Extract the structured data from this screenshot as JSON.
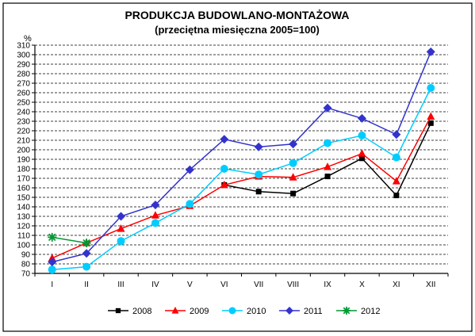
{
  "chart_data": {
    "type": "line",
    "title": "PRODUKCJA BUDOWLANO-MONTAŻOWA",
    "subtitle": "(przeciętna miesięczna 2005=100)",
    "ylabel": "%",
    "xlabel": "",
    "ylim": [
      70,
      310
    ],
    "ytick_step": 10,
    "grid": true,
    "legend_position": "bottom",
    "categories": [
      "I",
      "II",
      "III",
      "IV",
      "V",
      "VI",
      "VII",
      "VIII",
      "IX",
      "X",
      "XI",
      "XII"
    ],
    "series": [
      {
        "name": "2008",
        "color": "#000000",
        "marker": "square",
        "values": [
          null,
          null,
          null,
          null,
          null,
          163,
          156,
          154,
          172,
          191,
          152,
          228
        ]
      },
      {
        "name": "2009",
        "color": "#ff0000",
        "marker": "triangle",
        "values": [
          86,
          102,
          117,
          131,
          141,
          163,
          172,
          171,
          182,
          196,
          167,
          235
        ]
      },
      {
        "name": "2010",
        "color": "#00ccff",
        "marker": "circle",
        "values": [
          74,
          77,
          104,
          123,
          143,
          180,
          174,
          186,
          207,
          215,
          192,
          265
        ]
      },
      {
        "name": "2011",
        "color": "#3333cc",
        "marker": "diamond",
        "values": [
          82,
          91,
          130,
          142,
          179,
          211,
          203,
          206,
          244,
          233,
          216,
          303
        ]
      },
      {
        "name": "2012",
        "color": "#009933",
        "marker": "star",
        "values": [
          108,
          102,
          null,
          null,
          null,
          null,
          null,
          null,
          null,
          null,
          null,
          null
        ]
      }
    ]
  }
}
